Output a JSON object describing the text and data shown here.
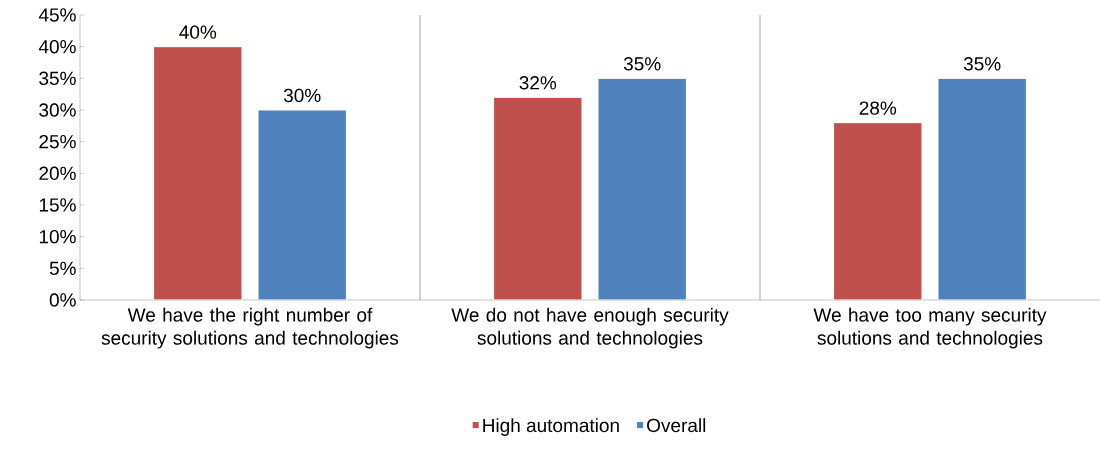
{
  "chart_data": {
    "type": "bar",
    "categories": [
      "We have the right number of security solutions and technologies",
      "We do not have enough security solutions and technologies",
      "We have too many security solutions and technologies"
    ],
    "series": [
      {
        "name": "High automation",
        "color": "#c0504d",
        "values": [
          40,
          32,
          28
        ],
        "value_labels": [
          "40%",
          "32%",
          "28%"
        ]
      },
      {
        "name": "Overall",
        "color": "#4f81bd",
        "values": [
          30,
          35,
          35
        ],
        "value_labels": [
          "30%",
          "35%",
          "35%"
        ]
      }
    ],
    "ylim": [
      0,
      45
    ],
    "yticks": [
      {
        "value": 0,
        "label": "0%"
      },
      {
        "value": 5,
        "label": "5%"
      },
      {
        "value": 10,
        "label": "10%"
      },
      {
        "value": 15,
        "label": "15%"
      },
      {
        "value": 20,
        "label": "20%"
      },
      {
        "value": 25,
        "label": "25%"
      },
      {
        "value": 30,
        "label": "30%"
      },
      {
        "value": 35,
        "label": "35%"
      },
      {
        "value": 40,
        "label": "40%"
      },
      {
        "value": 45,
        "label": "45%"
      }
    ],
    "grid": "x",
    "legend": "bottom"
  }
}
